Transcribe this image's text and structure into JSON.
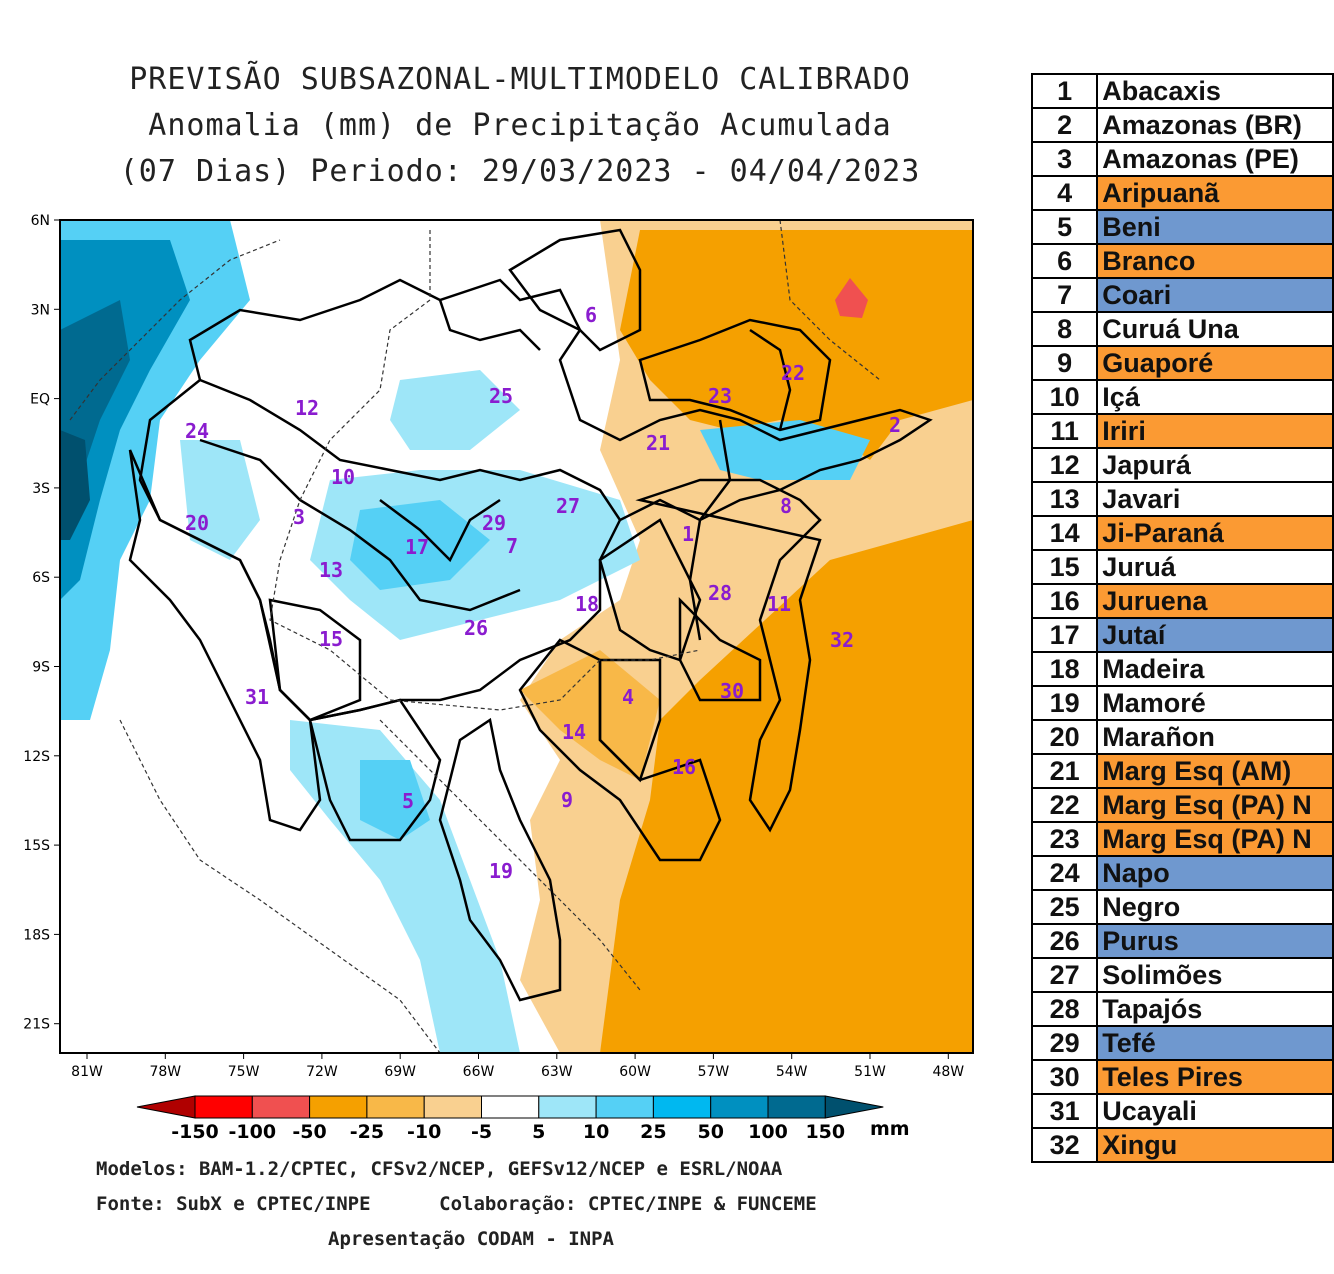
{
  "header": {
    "line1": "PREVISÃO SUBSAZONAL-MULTIMODELO CALIBRADO",
    "line2": "Anomalia (mm) de Precipitação Acumulada",
    "line3": "(07 Dias) Periodo: 29/03/2023 - 04/04/2023"
  },
  "map": {
    "lat_ticks": [
      "6N",
      "3N",
      "EQ",
      "3S",
      "6S",
      "9S",
      "12S",
      "15S",
      "18S",
      "21S"
    ],
    "lon_ticks": [
      "81W",
      "78W",
      "75W",
      "72W",
      "69W",
      "66W",
      "63W",
      "60W",
      "57W",
      "54W",
      "51W",
      "48W"
    ],
    "basin_labels": [
      {
        "id": "1",
        "text": "1"
      },
      {
        "id": "2",
        "text": "2"
      },
      {
        "id": "3",
        "text": "3"
      },
      {
        "id": "4",
        "text": "4"
      },
      {
        "id": "5",
        "text": "5"
      },
      {
        "id": "6",
        "text": "6"
      },
      {
        "id": "7",
        "text": "7"
      },
      {
        "id": "8",
        "text": "8"
      },
      {
        "id": "9",
        "text": "9"
      },
      {
        "id": "10",
        "text": "10"
      },
      {
        "id": "11",
        "text": "11"
      },
      {
        "id": "12",
        "text": "12"
      },
      {
        "id": "13",
        "text": "13"
      },
      {
        "id": "14",
        "text": "14"
      },
      {
        "id": "15",
        "text": "15"
      },
      {
        "id": "16",
        "text": "16"
      },
      {
        "id": "17",
        "text": "17"
      },
      {
        "id": "18",
        "text": "18"
      },
      {
        "id": "19",
        "text": "19"
      },
      {
        "id": "20",
        "text": "20"
      },
      {
        "id": "21",
        "text": "21"
      },
      {
        "id": "22",
        "text": "22"
      },
      {
        "id": "23",
        "text": "23"
      },
      {
        "id": "24",
        "text": "24"
      },
      {
        "id": "25",
        "text": "25"
      },
      {
        "id": "26",
        "text": "26"
      },
      {
        "id": "27",
        "text": "27"
      },
      {
        "id": "28",
        "text": "28"
      },
      {
        "id": "29",
        "text": "29"
      },
      {
        "id": "30",
        "text": "30"
      },
      {
        "id": "31",
        "text": "31"
      },
      {
        "id": "32",
        "text": "32"
      }
    ],
    "label_color": "#8a1ccf"
  },
  "colorbar": {
    "labels": [
      "-150",
      "-100",
      "-50",
      "-25",
      "-10",
      "-5",
      "5",
      "10",
      "25",
      "50",
      "100",
      "150"
    ],
    "unit": "mm",
    "colors": [
      "#b00000",
      "#ff0000",
      "#f05050",
      "#f5a000",
      "#f8b848",
      "#f9d090",
      "#ffffff",
      "#9ee6f8",
      "#55d0f5",
      "#00b8f0",
      "#0090c0",
      "#006a90",
      "#00506e"
    ]
  },
  "credits": {
    "line1": "Modelos: BAM-1.2/CPTEC, CFSv2/NCEP, GEFSv12/NCEP e ESRL/NOAA",
    "line2": "Fonte: SubX e CPTEC/INPE      Colaboração: CPTEC/INPE & FUNCEME",
    "line3": "Apresentação CODAM - INPA"
  },
  "legend": {
    "colors": {
      "orange": "#fb9a33",
      "blue": "#6f98cf",
      "white": "#ffffff"
    },
    "rows": [
      {
        "num": "1",
        "name": "Abacaxis",
        "color": "white"
      },
      {
        "num": "2",
        "name": "Amazonas (BR)",
        "color": "white"
      },
      {
        "num": "3",
        "name": "Amazonas (PE)",
        "color": "white"
      },
      {
        "num": "4",
        "name": "Aripuanã",
        "color": "orange"
      },
      {
        "num": "5",
        "name": "Beni",
        "color": "blue"
      },
      {
        "num": "6",
        "name": "Branco",
        "color": "orange"
      },
      {
        "num": "7",
        "name": "Coari",
        "color": "blue"
      },
      {
        "num": "8",
        "name": "Curuá Una",
        "color": "white"
      },
      {
        "num": "9",
        "name": "Guaporé",
        "color": "orange"
      },
      {
        "num": "10",
        "name": "Içá",
        "color": "white"
      },
      {
        "num": "11",
        "name": "Iriri",
        "color": "orange"
      },
      {
        "num": "12",
        "name": "Japurá",
        "color": "white"
      },
      {
        "num": "13",
        "name": "Javari",
        "color": "white"
      },
      {
        "num": "14",
        "name": "Ji-Paraná",
        "color": "orange"
      },
      {
        "num": "15",
        "name": "Juruá",
        "color": "white"
      },
      {
        "num": "16",
        "name": "Juruena",
        "color": "orange"
      },
      {
        "num": "17",
        "name": "Jutaí",
        "color": "blue"
      },
      {
        "num": "18",
        "name": "Madeira",
        "color": "white"
      },
      {
        "num": "19",
        "name": "Mamoré",
        "color": "white"
      },
      {
        "num": "20",
        "name": "Marañon",
        "color": "white"
      },
      {
        "num": "21",
        "name": "Marg Esq (AM)",
        "color": "orange"
      },
      {
        "num": "22",
        "name": "Marg Esq (PA) N",
        "color": "orange"
      },
      {
        "num": "23",
        "name": "Marg Esq (PA) N",
        "color": "orange"
      },
      {
        "num": "24",
        "name": "Napo",
        "color": "blue"
      },
      {
        "num": "25",
        "name": "Negro",
        "color": "white"
      },
      {
        "num": "26",
        "name": "Purus",
        "color": "blue"
      },
      {
        "num": "27",
        "name": "Solimões",
        "color": "white"
      },
      {
        "num": "28",
        "name": "Tapajós",
        "color": "white"
      },
      {
        "num": "29",
        "name": "Tefé",
        "color": "blue"
      },
      {
        "num": "30",
        "name": "Teles Pires",
        "color": "orange"
      },
      {
        "num": "31",
        "name": "Ucayali",
        "color": "white"
      },
      {
        "num": "32",
        "name": "Xingu",
        "color": "orange"
      }
    ]
  }
}
